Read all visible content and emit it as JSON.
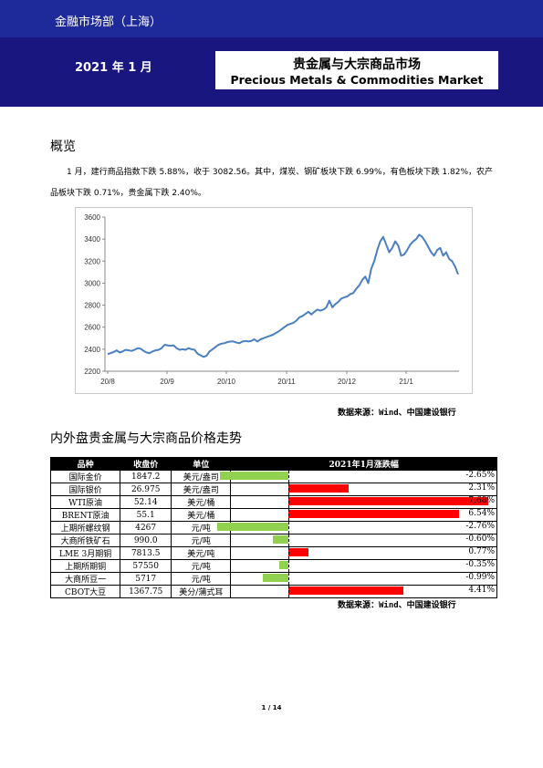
{
  "header": {
    "department": "金融市场部（上海）",
    "date": "2021 年 1 月",
    "title_cn": "贵金属与大宗商品市场",
    "title_en": "Precious Metals & Commodities Market"
  },
  "overview": {
    "heading": "概览",
    "text": "1 月，建行商品指数下跌 5.88%，收于 3082.56。其中，煤炭、钢矿板块下跌 6.99%，有色板块下跌 1.82%，农产品板块下跌 0.71%，贵金属下跌 2.40%。"
  },
  "chart_data": {
    "type": "line",
    "xlabel": "",
    "ylabel": "",
    "ylim": [
      2200,
      3600
    ],
    "yticks": [
      "3600",
      "3400",
      "3200",
      "3000",
      "2800",
      "2600",
      "2400",
      "2200"
    ],
    "xticks": [
      "20/8",
      "20/9",
      "20/10",
      "20/11",
      "20/12",
      "21/1"
    ],
    "grid": false,
    "series": [
      {
        "color": "#4a7fc1",
        "values": [
          2355,
          2365,
          2375,
          2390,
          2370,
          2380,
          2395,
          2390,
          2385,
          2395,
          2410,
          2405,
          2385,
          2370,
          2365,
          2380,
          2390,
          2395,
          2410,
          2440,
          2435,
          2430,
          2435,
          2410,
          2395,
          2400,
          2395,
          2410,
          2400,
          2395,
          2360,
          2345,
          2330,
          2340,
          2380,
          2400,
          2420,
          2440,
          2450,
          2455,
          2465,
          2470,
          2470,
          2460,
          2455,
          2470,
          2475,
          2470,
          2475,
          2490,
          2470,
          2490,
          2500,
          2510,
          2520,
          2530,
          2545,
          2560,
          2580,
          2600,
          2620,
          2630,
          2640,
          2660,
          2690,
          2700,
          2720,
          2740,
          2715,
          2740,
          2760,
          2750,
          2760,
          2780,
          2840,
          2780,
          2810,
          2830,
          2860,
          2870,
          2880,
          2900,
          2910,
          2950,
          2980,
          3030,
          3060,
          3000,
          3130,
          3200,
          3300,
          3380,
          3420,
          3350,
          3280,
          3320,
          3380,
          3340,
          3250,
          3260,
          3300,
          3350,
          3380,
          3400,
          3440,
          3420,
          3380,
          3330,
          3280,
          3250,
          3300,
          3320,
          3250,
          3280,
          3220,
          3200,
          3150,
          3080
        ]
      }
    ]
  },
  "source_text": "数据来源：Wind、中国建设银行",
  "table_section": {
    "heading": "内外盘贵金属与大宗商品价格走势",
    "columns": [
      "品种",
      "收盘价",
      "单位",
      "2021年1月涨跌幅"
    ],
    "positive_color": "#ff0000",
    "negative_color": "#92d050",
    "rows": [
      {
        "name": "国际金价",
        "close": "1847.2",
        "unit": "美元/盎司",
        "change": -2.65,
        "change_text": "-2.65%"
      },
      {
        "name": "国际银价",
        "close": "26.975",
        "unit": "美元/盎司",
        "change": 2.31,
        "change_text": "2.31%"
      },
      {
        "name": "WTI原油",
        "close": "52.14",
        "unit": "美元/桶",
        "change": 7.68,
        "change_text": "7.68%"
      },
      {
        "name": "BRENT原油",
        "close": "55.1",
        "unit": "美元/桶",
        "change": 6.54,
        "change_text": "6.54%"
      },
      {
        "name": "上期所螺纹钢",
        "close": "4267",
        "unit": "元/吨",
        "change": -2.76,
        "change_text": "-2.76%"
      },
      {
        "name": "大商所铁矿石",
        "close": "990.0",
        "unit": "元/吨",
        "change": -0.6,
        "change_text": "-0.60%"
      },
      {
        "name": "LME 3月期铜",
        "close": "7813.5",
        "unit": "美元/吨",
        "change": 0.77,
        "change_text": "0.77%"
      },
      {
        "name": "上期所期铜",
        "close": "57550",
        "unit": "元/吨",
        "change": -0.35,
        "change_text": "-0.35%"
      },
      {
        "name": "大商所豆一",
        "close": "5717",
        "unit": "元/吨",
        "change": -0.99,
        "change_text": "-0.99%"
      },
      {
        "name": "CBOT大豆",
        "close": "1367.75",
        "unit": "美分/蒲式耳",
        "change": 4.41,
        "change_text": "4.41%"
      }
    ]
  },
  "page_number": "1 / 14"
}
